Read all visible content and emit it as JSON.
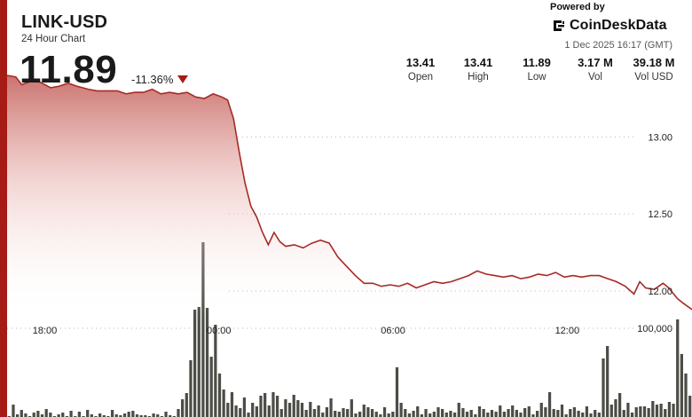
{
  "header": {
    "pair": "LINK-USD",
    "subtitle": "24 Hour Chart",
    "price": "11.89",
    "change": "-11.36%",
    "trend_icon": "down-triangle-icon",
    "powered_by": "Powered by",
    "brand": "CoinDeskData",
    "brand_icon": "coindesk-logo-icon",
    "timestamp": "1 Dec 2025 16:17 (GMT)"
  },
  "stats": [
    {
      "value": "13.41",
      "label": "Open"
    },
    {
      "value": "13.41",
      "label": "High"
    },
    {
      "value": "11.89",
      "label": "Low"
    },
    {
      "value": "3.17 M",
      "label": "Vol"
    },
    {
      "value": "39.18 M",
      "label": "Vol USD"
    }
  ],
  "colors": {
    "accent": "#a61b15",
    "line": "#a62a25",
    "area_top": "#c25a55",
    "volume_bar": "#4d4d47",
    "grid": "#b5b5b5"
  },
  "chart_data": {
    "type": "area",
    "x_ticks": [
      "18:00",
      "00:00",
      "06:00",
      "12:00"
    ],
    "y_ticks": [
      "13.00",
      "12.50",
      "12.00"
    ],
    "y_tick_values": [
      13.0,
      12.5,
      12.0
    ],
    "ylim": [
      11.7,
      13.4
    ],
    "x_range_hours": [
      -1.3,
      22.3
    ],
    "price_series": [
      [
        -1.3,
        13.4
      ],
      [
        -1.0,
        13.39
      ],
      [
        -0.8,
        13.34
      ],
      [
        -0.5,
        13.36
      ],
      [
        -0.2,
        13.36
      ],
      [
        0.2,
        13.32
      ],
      [
        0.5,
        13.33
      ],
      [
        0.8,
        13.35
      ],
      [
        1.1,
        13.33
      ],
      [
        1.5,
        13.31
      ],
      [
        1.8,
        13.3
      ],
      [
        2.1,
        13.3
      ],
      [
        2.5,
        13.3
      ],
      [
        2.8,
        13.28
      ],
      [
        3.1,
        13.29
      ],
      [
        3.4,
        13.29
      ],
      [
        3.7,
        13.31
      ],
      [
        4.0,
        13.28
      ],
      [
        4.3,
        13.29
      ],
      [
        4.6,
        13.28
      ],
      [
        4.9,
        13.29
      ],
      [
        5.2,
        13.26
      ],
      [
        5.5,
        13.25
      ],
      [
        5.8,
        13.28
      ],
      [
        6.1,
        13.26
      ],
      [
        6.3,
        13.24
      ],
      [
        6.5,
        13.12
      ],
      [
        6.7,
        12.9
      ],
      [
        6.9,
        12.7
      ],
      [
        7.1,
        12.55
      ],
      [
        7.3,
        12.48
      ],
      [
        7.5,
        12.38
      ],
      [
        7.7,
        12.3
      ],
      [
        7.9,
        12.38
      ],
      [
        8.1,
        12.32
      ],
      [
        8.3,
        12.29
      ],
      [
        8.6,
        12.3
      ],
      [
        8.9,
        12.28
      ],
      [
        9.2,
        12.31
      ],
      [
        9.5,
        12.33
      ],
      [
        9.8,
        12.31
      ],
      [
        10.1,
        12.22
      ],
      [
        10.4,
        12.16
      ],
      [
        10.7,
        12.1
      ],
      [
        11.0,
        12.05
      ],
      [
        11.3,
        12.05
      ],
      [
        11.6,
        12.03
      ],
      [
        11.9,
        12.04
      ],
      [
        12.2,
        12.03
      ],
      [
        12.5,
        12.05
      ],
      [
        12.8,
        12.02
      ],
      [
        13.1,
        12.04
      ],
      [
        13.4,
        12.06
      ],
      [
        13.7,
        12.05
      ],
      [
        14.0,
        12.06
      ],
      [
        14.3,
        12.08
      ],
      [
        14.6,
        12.1
      ],
      [
        14.9,
        12.13
      ],
      [
        15.2,
        12.11
      ],
      [
        15.5,
        12.1
      ],
      [
        15.8,
        12.09
      ],
      [
        16.1,
        12.1
      ],
      [
        16.4,
        12.08
      ],
      [
        16.7,
        12.09
      ],
      [
        17.0,
        12.11
      ],
      [
        17.3,
        12.1
      ],
      [
        17.6,
        12.12
      ],
      [
        17.9,
        12.09
      ],
      [
        18.2,
        12.1
      ],
      [
        18.5,
        12.09
      ],
      [
        18.8,
        12.1
      ],
      [
        19.1,
        12.1
      ],
      [
        19.4,
        12.08
      ],
      [
        19.7,
        12.06
      ],
      [
        20.0,
        12.03
      ],
      [
        20.3,
        11.98
      ],
      [
        20.5,
        12.06
      ],
      [
        20.7,
        12.02
      ],
      [
        21.0,
        12.01
      ],
      [
        21.3,
        12.05
      ],
      [
        21.5,
        12.02
      ],
      [
        21.8,
        11.95
      ],
      [
        22.0,
        11.92
      ],
      [
        22.3,
        11.88
      ]
    ],
    "volume_label": "100,000",
    "volume_label_value": 100000,
    "volume_ylim": [
      0,
      215000
    ],
    "volume_bars": [
      1000,
      14000,
      3000,
      8000,
      4000,
      1000,
      5000,
      7000,
      3000,
      9000,
      5000,
      1000,
      3000,
      5000,
      1000,
      7000,
      1000,
      6000,
      1000,
      8000,
      3000,
      1000,
      4000,
      2000,
      1000,
      8000,
      3000,
      2000,
      4000,
      6000,
      7000,
      3000,
      2000,
      2000,
      1000,
      4000,
      3000,
      1000,
      6000,
      2000,
      1000,
      9000,
      20000,
      27000,
      64000,
      121000,
      124000,
      197000,
      123000,
      68000,
      104000,
      49000,
      31000,
      16000,
      28000,
      13000,
      10000,
      22000,
      5000,
      16000,
      12000,
      24000,
      27000,
      13000,
      28000,
      24000,
      9000,
      20000,
      16000,
      25000,
      19000,
      16000,
      8000,
      17000,
      9000,
      13000,
      5000,
      11000,
      21000,
      7000,
      6000,
      10000,
      9000,
      20000,
      4000,
      6000,
      14000,
      11000,
      9000,
      6000,
      3000,
      11000,
      4000,
      6000,
      56000,
      16000,
      9000,
      4000,
      7000,
      12000,
      3000,
      9000,
      4000,
      6000,
      11000,
      9000,
      5000,
      7000,
      5000,
      16000,
      10000,
      6000,
      8000,
      3000,
      12000,
      9000,
      5000,
      8000,
      6000,
      13000,
      6000,
      9000,
      13000,
      8000,
      5000,
      10000,
      12000,
      3000,
      7000,
      16000,
      11000,
      28000,
      9000,
      8000,
      14000,
      3000,
      9000,
      11000,
      7000,
      5000,
      12000,
      4000,
      8000,
      5000,
      66000,
      80000,
      14000,
      20000,
      27000,
      8000,
      16000,
      5000,
      11000,
      12000,
      12000,
      10000,
      18000,
      14000,
      15000,
      9000,
      17000,
      15000,
      110000,
      71000,
      49000,
      24000
    ]
  }
}
